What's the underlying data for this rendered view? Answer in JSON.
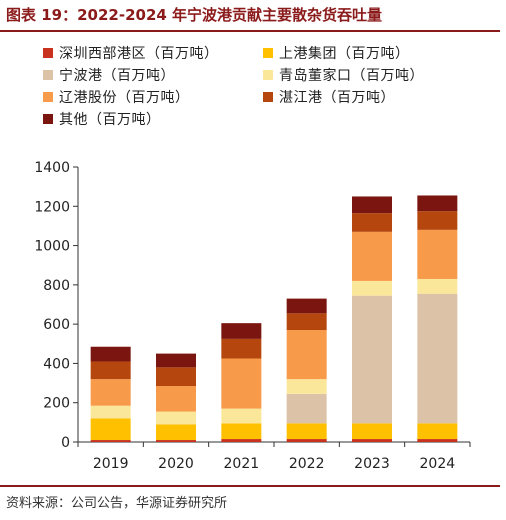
{
  "header": {
    "title": "图表 19：2022-2024 年宁波港贡献主要散杂货吞吐量"
  },
  "footer": {
    "source": "资料来源：公司公告，华源证券研究所"
  },
  "chart_data": {
    "type": "bar",
    "stacked": true,
    "categories": [
      "2019",
      "2020",
      "2021",
      "2022",
      "2023",
      "2024"
    ],
    "ylim": [
      0,
      1400
    ],
    "yticks": [
      0,
      200,
      400,
      600,
      800,
      1000,
      1200,
      1400
    ],
    "grid": false,
    "legend_position": "top",
    "series": [
      {
        "name": "深圳西部港区（百万吨）",
        "color": "#c8321e",
        "values": [
          10,
          10,
          15,
          15,
          15,
          15
        ]
      },
      {
        "name": "上港集团（百万吨）",
        "color": "#ffc000",
        "values": [
          110,
          80,
          80,
          80,
          80,
          80
        ]
      },
      {
        "name": "宁波港（百万吨）",
        "color": "#dcc3a8",
        "values": [
          0,
          0,
          0,
          150,
          650,
          660
        ]
      },
      {
        "name": "青岛董家口（百万吨）",
        "color": "#fbe79a",
        "values": [
          65,
          65,
          75,
          75,
          75,
          75
        ]
      },
      {
        "name": "辽港股份（百万吨）",
        "color": "#f79a4a",
        "values": [
          135,
          130,
          255,
          250,
          250,
          250
        ]
      },
      {
        "name": "湛江港（百万吨）",
        "color": "#b5470e",
        "values": [
          90,
          95,
          100,
          85,
          95,
          95
        ]
      },
      {
        "name": "其他（百万吨）",
        "color": "#7b1510",
        "values": [
          75,
          70,
          80,
          75,
          85,
          80
        ]
      }
    ]
  }
}
